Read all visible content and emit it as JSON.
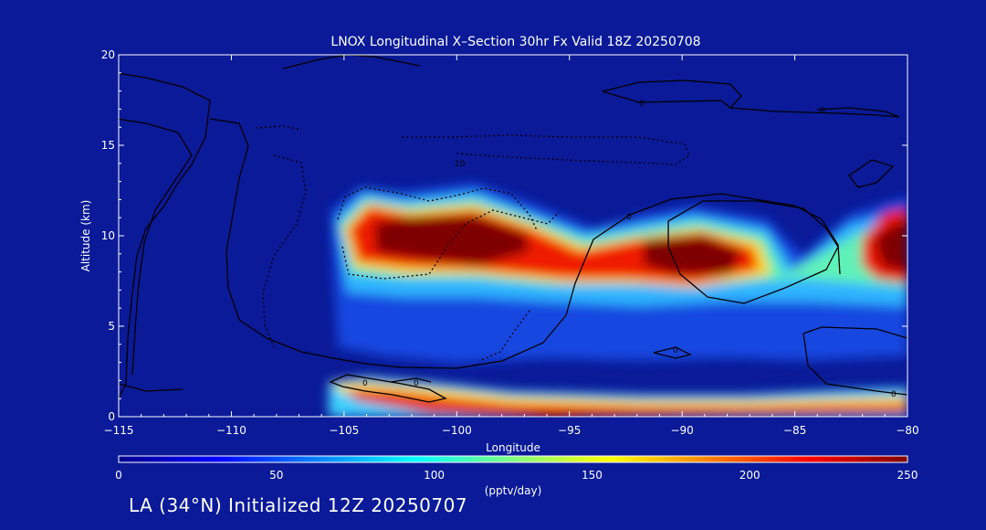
{
  "chart_data": {
    "type": "heatmap",
    "title": "LNOX Longitudinal X–Section 30hr  Fx Valid 18Z 20250708",
    "xlabel": "Longitude",
    "ylabel": "Altitude (km)",
    "xlim": [
      -115,
      -80
    ],
    "ylim": [
      0,
      20
    ],
    "x_ticks": [
      -115,
      -110,
      -105,
      -100,
      -95,
      -90,
      -85,
      -80
    ],
    "x_tick_labels": [
      "−115",
      "−110",
      "−105",
      "−100",
      "−95",
      "−90",
      "−85",
      "−80"
    ],
    "y_ticks": [
      0,
      5,
      10,
      15,
      20
    ],
    "y_tick_labels": [
      "0",
      "5",
      "10",
      "15",
      "20"
    ],
    "colorbar": {
      "min": 0,
      "max": 250,
      "ticks": [
        0,
        50,
        100,
        150,
        200,
        250
      ],
      "tick_labels": [
        "0",
        "50",
        "100",
        "150",
        "200",
        "250"
      ],
      "label": "(pptv/day)",
      "colormap": "jet"
    },
    "contour_labels": [
      "0",
      "0",
      "0",
      "10",
      "0",
      "0",
      "0",
      "0",
      "0"
    ],
    "grid": false,
    "description_regions": [
      {
        "lon": [
          -104.5,
          -96
        ],
        "alt": [
          8.5,
          11.5
        ],
        "peak": 250
      },
      {
        "lon": [
          -92,
          -87
        ],
        "alt": [
          8,
          10.5
        ],
        "peak": 250
      },
      {
        "lon": [
          -81,
          -80
        ],
        "alt": [
          8.5,
          11
        ],
        "peak": 250
      },
      {
        "lon": [
          -104,
          -80
        ],
        "alt": [
          0,
          1.5
        ],
        "peak": 230
      }
    ]
  },
  "footer": {
    "text": "LA (34°N) Initialized 12Z 20250707"
  },
  "colors": {
    "background": "#0a1a98",
    "axis": "#ffffff",
    "contour": "#000000"
  }
}
